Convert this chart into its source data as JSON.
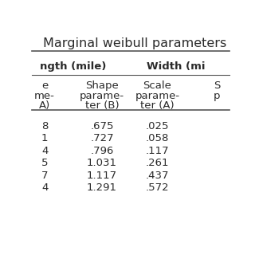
{
  "title": "Marginal weibull parameters",
  "rows": [
    [
      "8",
      ".675",
      ".025"
    ],
    [
      "1",
      ".727",
      ".058"
    ],
    [
      "4",
      ".796",
      ".117"
    ],
    [
      "5",
      "1.031",
      ".261"
    ],
    [
      "7",
      "1.117",
      ".437"
    ],
    [
      "4",
      "1.291",
      ".572"
    ]
  ],
  "bg_color": "#ffffff",
  "text_color": "#2a2a2a",
  "line_color": "#555555",
  "font_size": 9.5,
  "title_font_size": 11.5
}
